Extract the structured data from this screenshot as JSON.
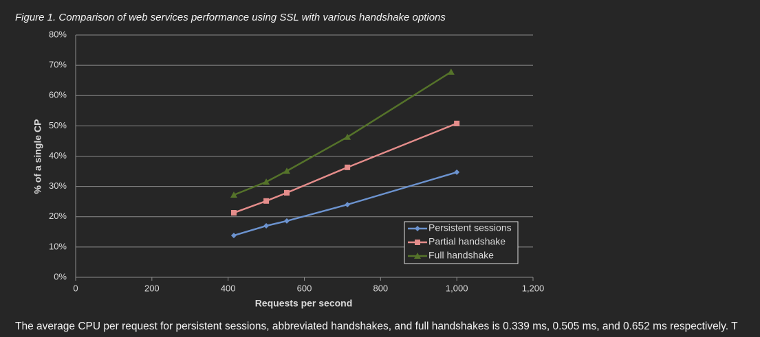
{
  "caption": "Figure 1. Comparison of web services performance using SSL with various handshake options",
  "paragraph": "The average CPU per request for persistent sessions, abbreviated handshakes, and full handshakes is 0.339 ms, 0.505 ms, and 0.652 ms respectively. T",
  "chart_data": {
    "type": "line",
    "x_label": "Requests per second",
    "y_label": "% of a single CP",
    "xlim": [
      0,
      1200
    ],
    "xticks": [
      0,
      200,
      400,
      600,
      800,
      {
        "value": 1000,
        "label": "1,000"
      },
      {
        "value": 1200,
        "label": "1,200"
      }
    ],
    "ylim": [
      0,
      80
    ],
    "yticks": [
      {
        "value": 0,
        "label": "0%"
      },
      {
        "value": 10,
        "label": "10%"
      },
      {
        "value": 20,
        "label": "20%"
      },
      {
        "value": 30,
        "label": "30%"
      },
      {
        "value": 40,
        "label": "40%"
      },
      {
        "value": 50,
        "label": "50%"
      },
      {
        "value": 60,
        "label": "60%"
      },
      {
        "value": 70,
        "label": "70%"
      },
      {
        "value": 80,
        "label": "80%"
      }
    ],
    "grid": true,
    "legend": "lower right",
    "series": [
      {
        "name": "Persistent sessions",
        "color": "#6c93cf",
        "marker": "diamond",
        "x": [
          415,
          500,
          554,
          713,
          1000
        ],
        "values": [
          13.8,
          17,
          18.6,
          24,
          34.7
        ]
      },
      {
        "name": "Partial handshake",
        "color": "#e58d8b",
        "marker": "square",
        "x": [
          415,
          500,
          554,
          713,
          1000
        ],
        "values": [
          21.3,
          25.2,
          27.9,
          36.3,
          50.8
        ]
      },
      {
        "name": "Full handshake",
        "color": "#55732a",
        "marker": "triangle",
        "x": [
          415,
          500,
          554,
          713,
          985
        ],
        "values": [
          27.2,
          31.5,
          35.1,
          46.3,
          67.8
        ]
      }
    ]
  }
}
